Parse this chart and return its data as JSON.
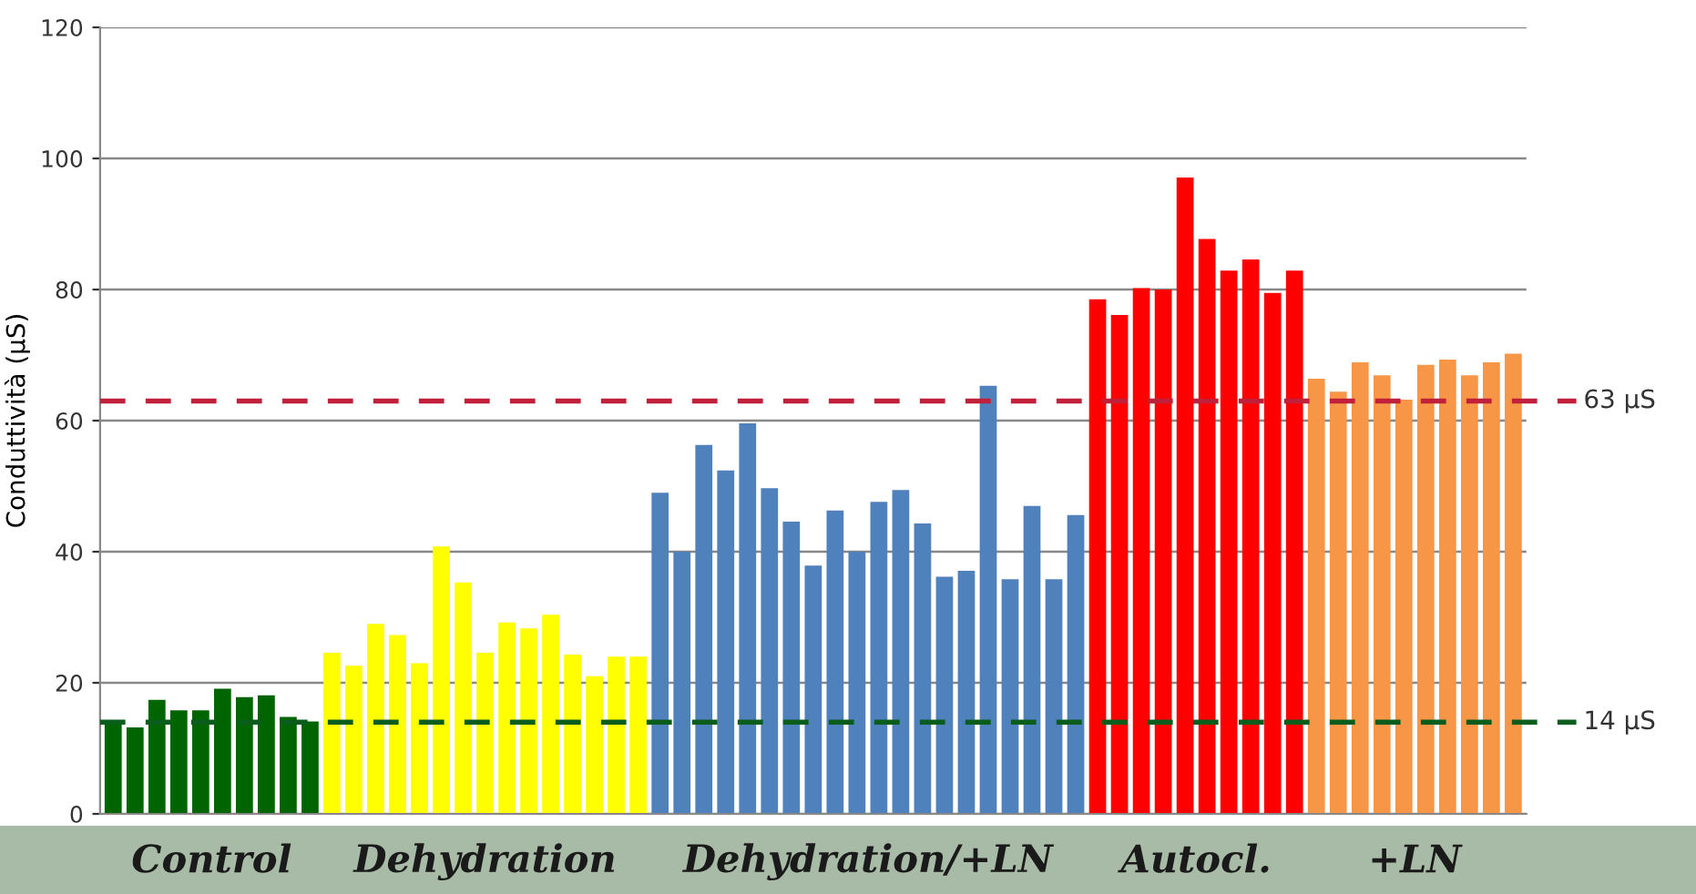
{
  "chart_data": {
    "type": "bar",
    "ylabel": "Conduttività (µS)",
    "categories": [
      null,
      null,
      null,
      null,
      null,
      null,
      null,
      null,
      null,
      null,
      null,
      null,
      null,
      null,
      null,
      null,
      null,
      null,
      null,
      null,
      null,
      null,
      null,
      null,
      null,
      null,
      null,
      null,
      null,
      null,
      null,
      null,
      null,
      null,
      null,
      null,
      null,
      null,
      null,
      null,
      null,
      null,
      null,
      null,
      null,
      null,
      null,
      null,
      null,
      null,
      null,
      null,
      null,
      null,
      null,
      null,
      null,
      null,
      null,
      null,
      null,
      null,
      null,
      null,
      null
    ],
    "series": [
      {
        "name": "Control",
        "color": "#006400",
        "values": [
          13.7,
          13.2,
          17.4,
          15.8,
          15.8,
          19.1,
          17.8,
          18.1,
          14.8,
          14.1,
          null,
          null,
          null,
          null,
          null,
          null,
          null,
          null,
          null,
          null,
          null,
          null,
          null,
          null,
          null,
          null,
          null,
          null,
          null,
          null,
          null,
          null,
          null,
          null,
          null,
          null,
          null,
          null,
          null,
          null,
          null,
          null,
          null,
          null,
          null,
          null,
          null,
          null,
          null,
          null,
          null,
          null,
          null,
          null,
          null,
          null,
          null,
          null,
          null,
          null,
          null,
          null,
          null,
          null,
          null
        ]
      },
      {
        "name": "Dehydration",
        "color": "#ffff00",
        "values": [
          null,
          null,
          null,
          null,
          null,
          null,
          null,
          null,
          null,
          null,
          24.6,
          22.6,
          29.0,
          27.3,
          23.0,
          40.8,
          35.3,
          24.6,
          29.2,
          28.3,
          30.4,
          24.3,
          21.0,
          24.0,
          24.0,
          null,
          null,
          null,
          null,
          null,
          null,
          null,
          null,
          null,
          null,
          null,
          null,
          null,
          null,
          null,
          null,
          null,
          null,
          null,
          null,
          null,
          null,
          null,
          null,
          null,
          null,
          null,
          null,
          null,
          null,
          null,
          null,
          null,
          null,
          null,
          null,
          null,
          null,
          null,
          null
        ]
      },
      {
        "name": "Dehydration/+LN",
        "color": "#4f81bd",
        "values": [
          null,
          null,
          null,
          null,
          null,
          null,
          null,
          null,
          null,
          null,
          null,
          null,
          null,
          null,
          null,
          null,
          null,
          null,
          null,
          null,
          null,
          null,
          null,
          null,
          null,
          49.0,
          40.0,
          56.3,
          52.4,
          59.6,
          49.7,
          44.6,
          37.9,
          46.3,
          40.0,
          47.6,
          49.4,
          44.3,
          36.2,
          37.1,
          65.3,
          35.8,
          47.0,
          35.8,
          45.6,
          null,
          null,
          null,
          null,
          null,
          null,
          null,
          null,
          null,
          null,
          null,
          null,
          null,
          null,
          null,
          null,
          null,
          null,
          null,
          null
        ]
      },
      {
        "name": "Autocl.",
        "color": "#ff0000",
        "values": [
          null,
          null,
          null,
          null,
          null,
          null,
          null,
          null,
          null,
          null,
          null,
          null,
          null,
          null,
          null,
          null,
          null,
          null,
          null,
          null,
          null,
          null,
          null,
          null,
          null,
          null,
          null,
          null,
          null,
          null,
          null,
          null,
          null,
          null,
          null,
          null,
          null,
          null,
          null,
          null,
          null,
          null,
          null,
          null,
          null,
          78.5,
          76.1,
          80.2,
          80.0,
          97.1,
          87.7,
          82.9,
          84.6,
          79.5,
          82.9,
          null,
          null,
          null,
          null,
          null,
          null,
          null,
          null,
          null,
          null
        ]
      },
      {
        "name": "+LN",
        "color": "#f79646",
        "values": [
          null,
          null,
          null,
          null,
          null,
          null,
          null,
          null,
          null,
          null,
          null,
          null,
          null,
          null,
          null,
          null,
          null,
          null,
          null,
          null,
          null,
          null,
          null,
          null,
          null,
          null,
          null,
          null,
          null,
          null,
          null,
          null,
          null,
          null,
          null,
          null,
          null,
          null,
          null,
          null,
          null,
          null,
          null,
          null,
          null,
          null,
          null,
          null,
          null,
          null,
          null,
          null,
          null,
          null,
          null,
          66.4,
          64.4,
          68.9,
          66.9,
          63.2,
          68.5,
          69.3,
          66.9,
          68.9,
          70.2
        ]
      }
    ],
    "ylim": [
      0,
      120
    ],
    "yticks": [
      0,
      20,
      40,
      60,
      80,
      100,
      120
    ],
    "grid": "y",
    "legend": false,
    "ref_lines": [
      {
        "axis": "y",
        "value": 63,
        "label": "63 µS",
        "color": "#c0203a",
        "line_style": "dashed"
      },
      {
        "axis": "y",
        "value": 14,
        "label": "14 µS",
        "color": "#0b5d1e",
        "line_style": "dashed"
      }
    ]
  }
}
